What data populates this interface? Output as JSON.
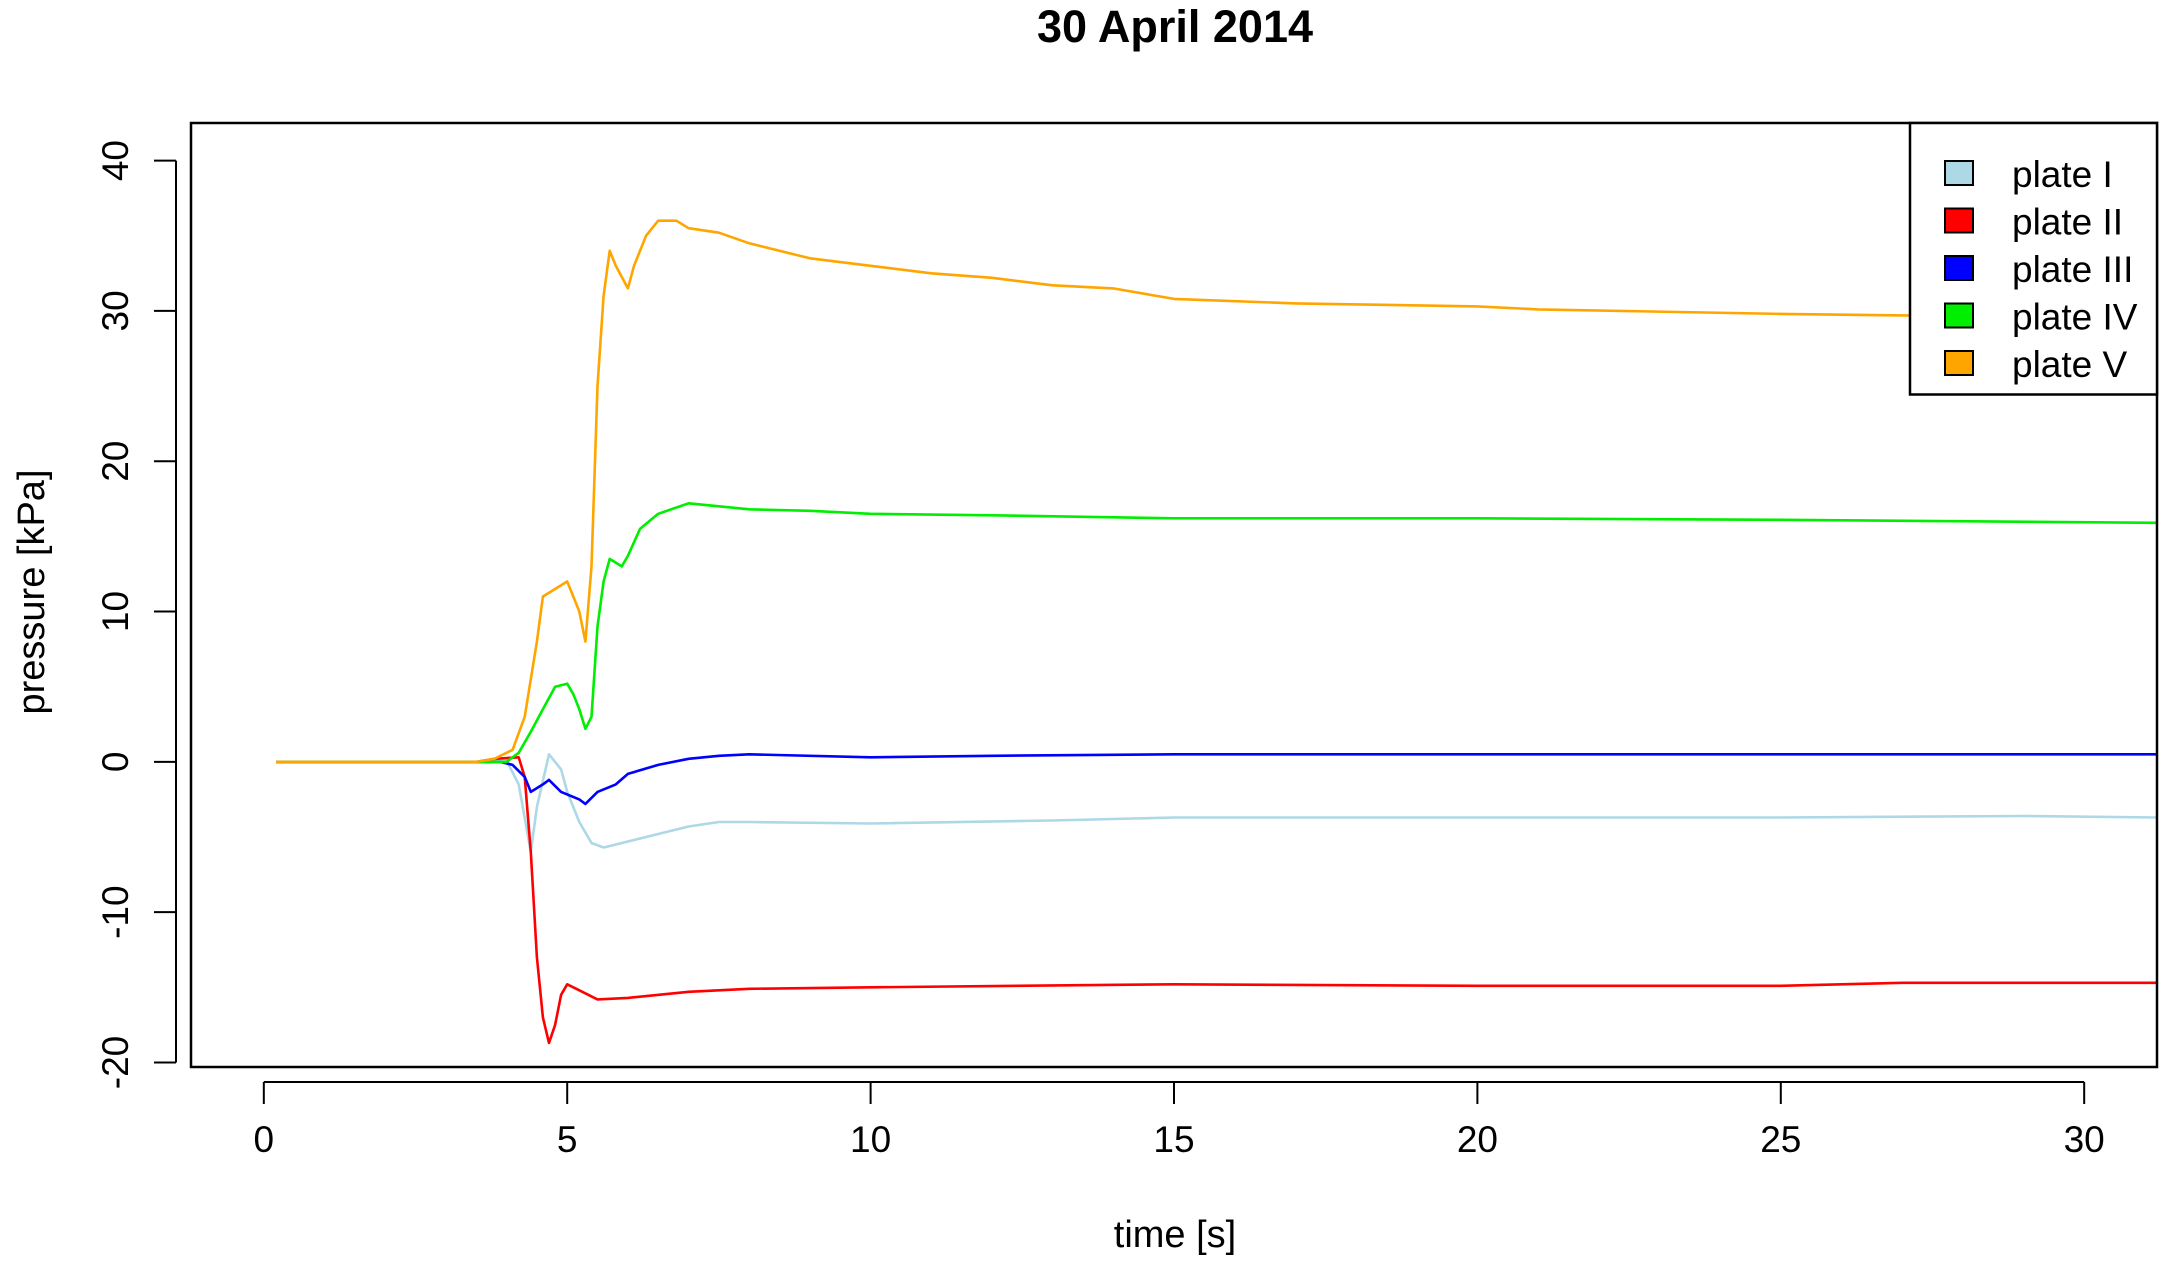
{
  "chart_data": {
    "type": "line",
    "title": "30 April 2014",
    "xlabel": "time [s]",
    "ylabel": "pressure [kPa]",
    "xlim": [
      -1.2,
      31.2
    ],
    "ylim": [
      -20.3,
      42.5
    ],
    "xticks": [
      0,
      5,
      10,
      15,
      20,
      25,
      30
    ],
    "yticks": [
      -20,
      -10,
      0,
      10,
      20,
      30,
      40
    ],
    "x_tick_labels": [
      "0",
      "5",
      "10",
      "15",
      "20",
      "25",
      "30"
    ],
    "y_tick_labels": [
      "-20",
      "-10",
      "0",
      "10",
      "20",
      "30",
      "40"
    ],
    "grid": false,
    "legend_position": "top-right",
    "series": [
      {
        "name": "plate I",
        "color": "#add8e6",
        "points": [
          [
            0.2,
            0
          ],
          [
            3.7,
            0
          ],
          [
            4.0,
            0.1
          ],
          [
            4.2,
            -1.5
          ],
          [
            4.4,
            -6
          ],
          [
            4.5,
            -3
          ],
          [
            4.7,
            0.5
          ],
          [
            4.9,
            -0.5
          ],
          [
            5.0,
            -2
          ],
          [
            5.2,
            -4
          ],
          [
            5.4,
            -5.4
          ],
          [
            5.6,
            -5.7
          ],
          [
            6.0,
            -5.3
          ],
          [
            6.5,
            -4.8
          ],
          [
            7.0,
            -4.3
          ],
          [
            7.5,
            -4.0
          ],
          [
            8.0,
            -4.0
          ],
          [
            10.0,
            -4.1
          ],
          [
            13.0,
            -3.9
          ],
          [
            15.0,
            -3.7
          ],
          [
            20.0,
            -3.7
          ],
          [
            25.0,
            -3.7
          ],
          [
            29.0,
            -3.6
          ],
          [
            31.2,
            -3.7
          ]
        ]
      },
      {
        "name": "plate II",
        "color": "#ff0000",
        "points": [
          [
            0.2,
            0
          ],
          [
            3.5,
            0
          ],
          [
            3.8,
            0.2
          ],
          [
            4.2,
            0.3
          ],
          [
            4.3,
            -1
          ],
          [
            4.4,
            -6
          ],
          [
            4.5,
            -13
          ],
          [
            4.6,
            -17
          ],
          [
            4.7,
            -18.7
          ],
          [
            4.8,
            -17.5
          ],
          [
            4.9,
            -15.5
          ],
          [
            5.0,
            -14.8
          ],
          [
            5.2,
            -15.2
          ],
          [
            5.5,
            -15.8
          ],
          [
            6.0,
            -15.7
          ],
          [
            7.0,
            -15.3
          ],
          [
            8.0,
            -15.1
          ],
          [
            10.0,
            -15.0
          ],
          [
            15.0,
            -14.8
          ],
          [
            20.0,
            -14.9
          ],
          [
            25.0,
            -14.9
          ],
          [
            27.0,
            -14.7
          ],
          [
            31.2,
            -14.7
          ]
        ]
      },
      {
        "name": "plate III",
        "color": "#0000ff",
        "points": [
          [
            0.2,
            0
          ],
          [
            3.9,
            0
          ],
          [
            4.1,
            -0.2
          ],
          [
            4.3,
            -1
          ],
          [
            4.4,
            -2
          ],
          [
            4.6,
            -1.5
          ],
          [
            4.7,
            -1.2
          ],
          [
            4.9,
            -2
          ],
          [
            5.2,
            -2.5
          ],
          [
            5.3,
            -2.8
          ],
          [
            5.5,
            -2
          ],
          [
            5.8,
            -1.5
          ],
          [
            6.0,
            -0.8
          ],
          [
            6.5,
            -0.2
          ],
          [
            7.0,
            0.2
          ],
          [
            7.5,
            0.4
          ],
          [
            8.0,
            0.5
          ],
          [
            10.0,
            0.3
          ],
          [
            12.0,
            0.4
          ],
          [
            15.0,
            0.5
          ],
          [
            20.0,
            0.5
          ],
          [
            25.0,
            0.5
          ],
          [
            31.2,
            0.5
          ]
        ]
      },
      {
        "name": "plate IV",
        "color": "#00ee00",
        "points": [
          [
            0.2,
            0
          ],
          [
            4.0,
            0
          ],
          [
            4.2,
            0.6
          ],
          [
            4.4,
            2
          ],
          [
            4.6,
            3.5
          ],
          [
            4.8,
            5
          ],
          [
            5.0,
            5.2
          ],
          [
            5.1,
            4.5
          ],
          [
            5.2,
            3.5
          ],
          [
            5.3,
            2.2
          ],
          [
            5.4,
            3
          ],
          [
            5.5,
            9
          ],
          [
            5.6,
            12
          ],
          [
            5.7,
            13.5
          ],
          [
            5.9,
            13
          ],
          [
            6.0,
            13.7
          ],
          [
            6.2,
            15.5
          ],
          [
            6.5,
            16.5
          ],
          [
            7.0,
            17.2
          ],
          [
            7.5,
            17.0
          ],
          [
            8.0,
            16.8
          ],
          [
            9.0,
            16.7
          ],
          [
            10.0,
            16.5
          ],
          [
            12.0,
            16.4
          ],
          [
            15.0,
            16.2
          ],
          [
            20.0,
            16.2
          ],
          [
            25.0,
            16.1
          ],
          [
            31.2,
            15.9
          ]
        ]
      },
      {
        "name": "plate V",
        "color": "#ffa500",
        "points": [
          [
            0.2,
            0
          ],
          [
            3.5,
            0
          ],
          [
            3.8,
            0.2
          ],
          [
            4.1,
            0.8
          ],
          [
            4.3,
            3
          ],
          [
            4.5,
            8
          ],
          [
            4.6,
            11
          ],
          [
            4.8,
            11.5
          ],
          [
            5.0,
            12
          ],
          [
            5.1,
            11
          ],
          [
            5.2,
            10
          ],
          [
            5.3,
            8
          ],
          [
            5.4,
            13
          ],
          [
            5.5,
            25
          ],
          [
            5.6,
            31
          ],
          [
            5.7,
            34
          ],
          [
            5.8,
            33
          ],
          [
            6.0,
            31.5
          ],
          [
            6.1,
            33
          ],
          [
            6.3,
            35
          ],
          [
            6.5,
            36
          ],
          [
            6.8,
            36
          ],
          [
            7.0,
            35.5
          ],
          [
            7.5,
            35.2
          ],
          [
            8.0,
            34.5
          ],
          [
            9.0,
            33.5
          ],
          [
            10.0,
            33.0
          ],
          [
            11.0,
            32.5
          ],
          [
            12.0,
            32.2
          ],
          [
            13.0,
            31.7
          ],
          [
            14.0,
            31.5
          ],
          [
            15.0,
            30.8
          ],
          [
            17.0,
            30.5
          ],
          [
            20.0,
            30.3
          ],
          [
            21.0,
            30.1
          ],
          [
            25.0,
            29.8
          ],
          [
            27.0,
            29.7
          ],
          [
            31.2,
            29.6
          ]
        ]
      }
    ]
  }
}
